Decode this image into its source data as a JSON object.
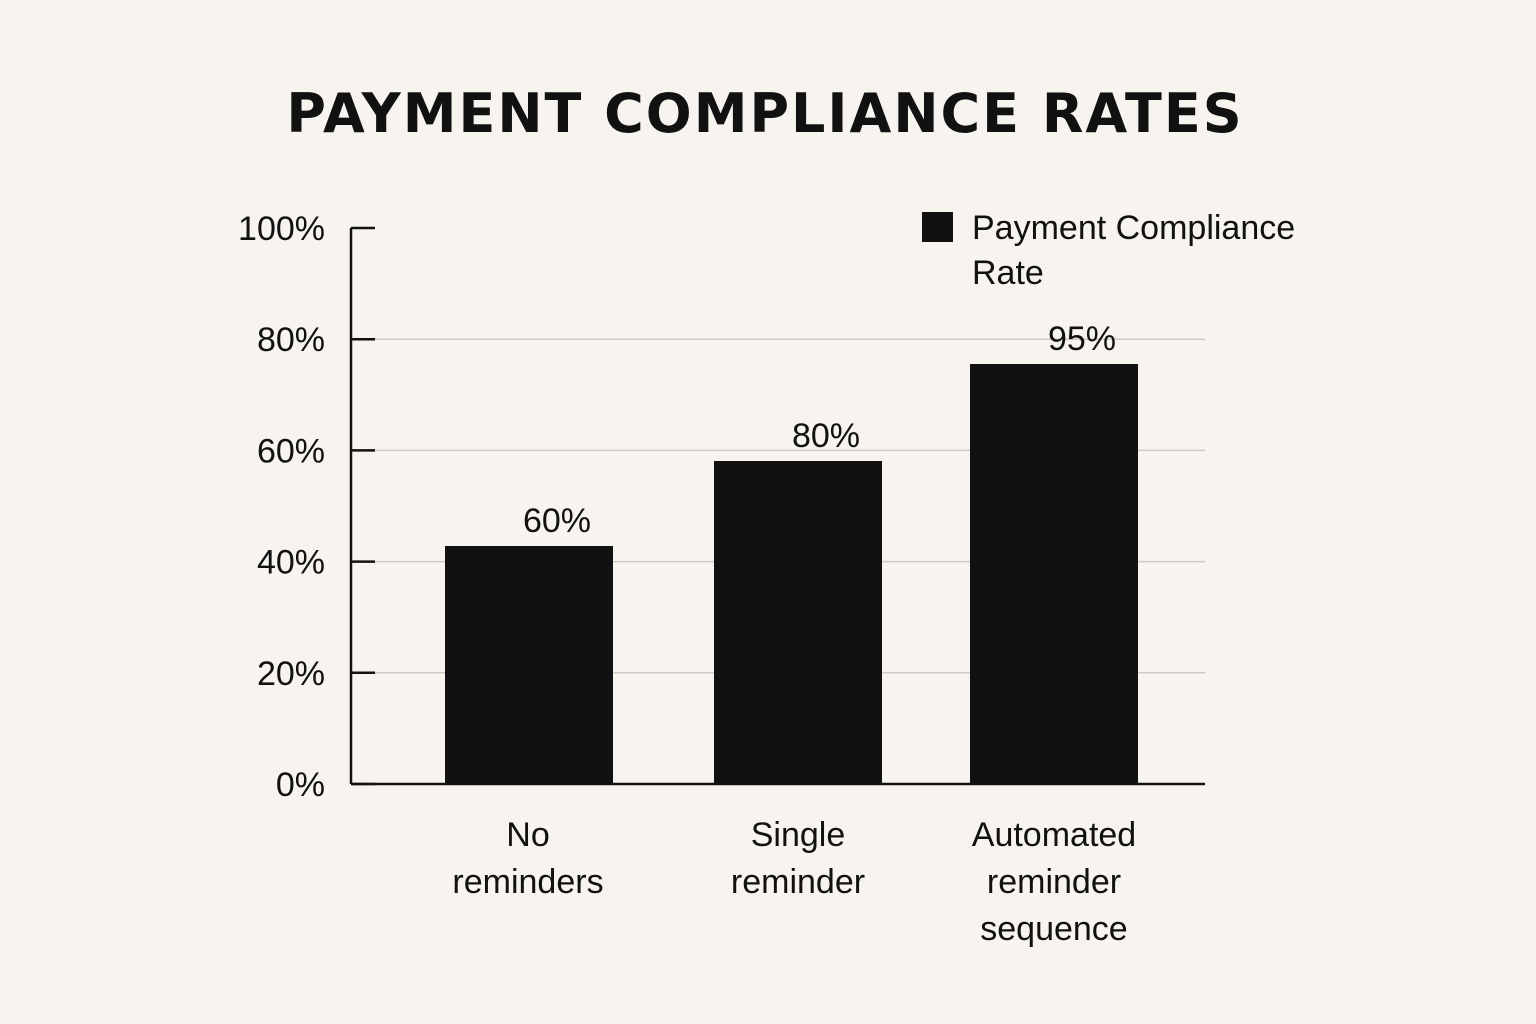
{
  "colors": {
    "background": "#f7f4ef",
    "bar": "#111111",
    "grid": "#cfcbc4",
    "axis": "#111111"
  },
  "chart_data": {
    "type": "bar",
    "title": "PAYMENT COMPLIANCE RATES",
    "categories": [
      [
        "No",
        "reminders"
      ],
      [
        "Single",
        "reminder"
      ],
      [
        "Automated",
        "reminder",
        "sequence"
      ]
    ],
    "series": [
      {
        "name": "Payment Compliance Rate",
        "legend_lines": [
          "Payment Compliance",
          "Rate"
        ],
        "values": [
          60,
          80,
          95
        ],
        "data_labels": [
          "60%",
          "80%",
          "95%"
        ]
      }
    ],
    "y_ticks": [
      0,
      20,
      40,
      60,
      80,
      100
    ],
    "y_tick_labels": [
      "0%",
      "20%",
      "40%",
      "60%",
      "80%",
      "100%"
    ],
    "ylim": [
      0,
      100
    ],
    "grid": true,
    "legend_position": "top-right"
  }
}
